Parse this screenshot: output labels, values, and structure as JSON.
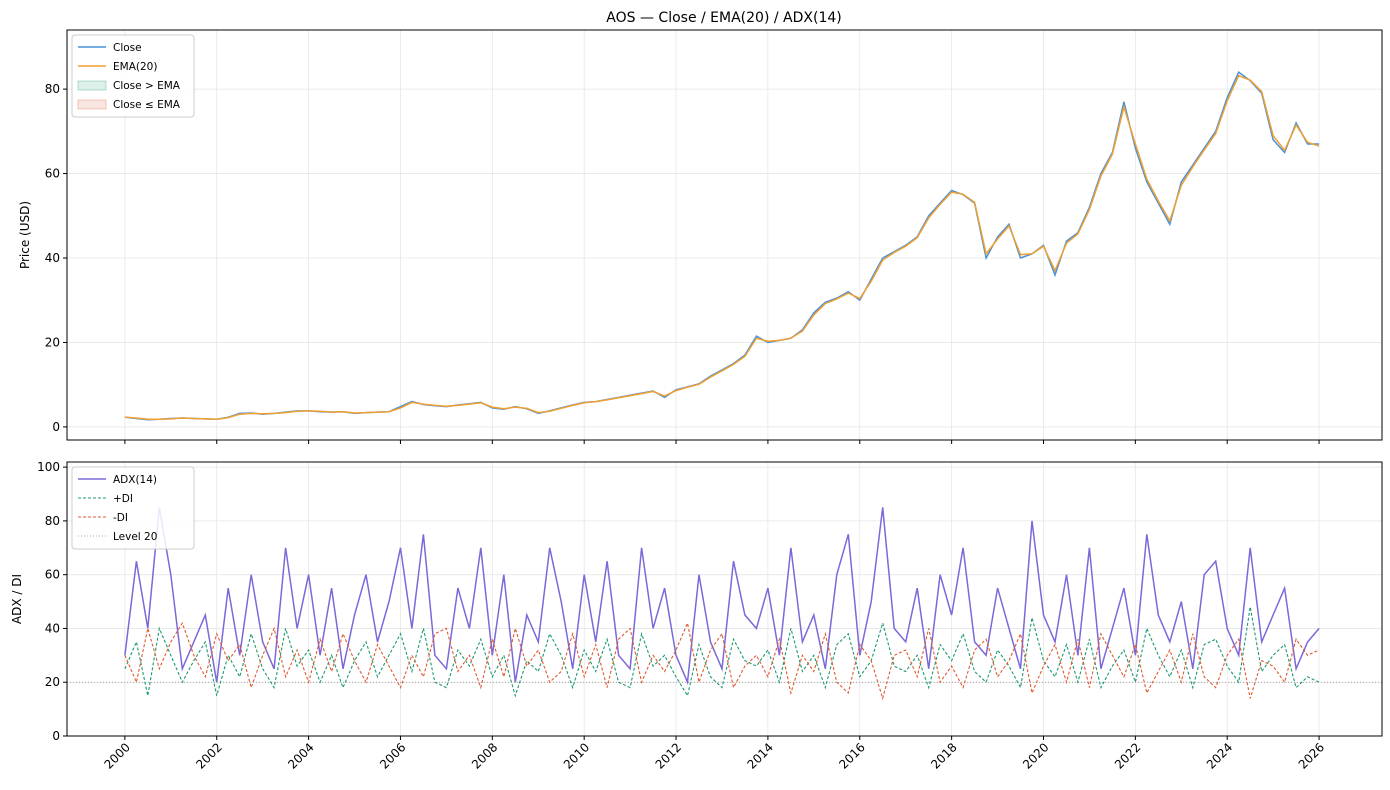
{
  "chart_data": [
    {
      "type": "line",
      "title": "AOS — Close / EMA(20) / ADX(14)",
      "y_label": "Price (USD)",
      "x": [
        2000,
        2000.25,
        2000.5,
        2000.75,
        2001,
        2001.25,
        2001.5,
        2001.75,
        2002,
        2002.25,
        2002.5,
        2002.75,
        2003,
        2003.25,
        2003.5,
        2003.75,
        2004,
        2004.25,
        2004.5,
        2004.75,
        2005,
        2005.25,
        2005.5,
        2005.75,
        2006,
        2006.25,
        2006.5,
        2006.75,
        2007,
        2007.25,
        2007.5,
        2007.75,
        2008,
        2008.25,
        2008.5,
        2008.75,
        2009,
        2009.25,
        2009.5,
        2009.75,
        2010,
        2010.25,
        2010.5,
        2010.75,
        2011,
        2011.25,
        2011.5,
        2011.75,
        2012,
        2012.25,
        2012.5,
        2012.75,
        2013,
        2013.25,
        2013.5,
        2013.75,
        2014,
        2014.25,
        2014.5,
        2014.75,
        2015,
        2015.25,
        2015.5,
        2015.75,
        2016,
        2016.25,
        2016.5,
        2016.75,
        2017,
        2017.25,
        2017.5,
        2017.75,
        2018,
        2018.25,
        2018.5,
        2018.75,
        2019,
        2019.25,
        2019.5,
        2019.75,
        2020,
        2020.25,
        2020.5,
        2020.75,
        2021,
        2021.25,
        2021.5,
        2021.75,
        2022,
        2022.25,
        2022.5,
        2022.75,
        2023,
        2023.25,
        2023.5,
        2023.75,
        2024,
        2024.25,
        2024.5,
        2024.75,
        2025,
        2025.25,
        2025.5,
        2025.75,
        2026
      ],
      "series": [
        {
          "name": "Close",
          "color": "#4a90d9",
          "dash": false,
          "values": [
            2.3,
            2.0,
            1.7,
            1.8,
            2.0,
            2.1,
            2.0,
            1.9,
            1.8,
            2.3,
            3.2,
            3.3,
            3.0,
            3.2,
            3.5,
            3.8,
            3.8,
            3.6,
            3.5,
            3.6,
            3.2,
            3.4,
            3.5,
            3.6,
            4.8,
            6.0,
            5.3,
            5.0,
            4.8,
            5.2,
            5.5,
            5.8,
            4.5,
            4.2,
            4.8,
            4.3,
            3.2,
            3.8,
            4.5,
            5.2,
            5.8,
            6.0,
            6.5,
            7.0,
            7.5,
            8.0,
            8.5,
            7.0,
            8.8,
            9.5,
            10.2,
            12.0,
            13.5,
            15.0,
            17.0,
            21.5,
            20.0,
            20.5,
            21.0,
            23.0,
            27.0,
            29.5,
            30.5,
            32.0,
            30.0,
            35.0,
            40.0,
            41.5,
            43.0,
            45.0,
            50.0,
            53.0,
            56.0,
            55.0,
            53.0,
            40.0,
            45.0,
            48.0,
            40.0,
            41.0,
            43.0,
            36.0,
            44.0,
            46.0,
            52.0,
            60.0,
            65.0,
            77.0,
            66.0,
            58.0,
            53.0,
            48.0,
            58.0,
            62.0,
            66.0,
            70.0,
            78.0,
            84.0,
            82.0,
            79.0,
            68.0,
            65.0,
            72.0,
            67.0,
            67.0
          ]
        },
        {
          "name": "EMA(20)",
          "color": "#f0a030",
          "dash": false,
          "values": [
            2.3,
            2.1,
            1.8,
            1.8,
            1.9,
            2.1,
            2.0,
            1.9,
            1.8,
            2.2,
            3.0,
            3.2,
            3.1,
            3.2,
            3.4,
            3.7,
            3.8,
            3.7,
            3.5,
            3.6,
            3.3,
            3.4,
            3.5,
            3.6,
            4.5,
            5.8,
            5.4,
            5.1,
            4.9,
            5.1,
            5.4,
            5.7,
            4.7,
            4.3,
            4.7,
            4.4,
            3.4,
            3.7,
            4.4,
            5.1,
            5.7,
            6.0,
            6.4,
            6.9,
            7.4,
            7.9,
            8.4,
            7.3,
            8.6,
            9.4,
            10.1,
            11.8,
            13.3,
            14.8,
            16.7,
            21.0,
            20.3,
            20.5,
            21.0,
            22.7,
            26.5,
            29.2,
            30.3,
            31.7,
            30.4,
            34.5,
            39.5,
            41.3,
            42.8,
            44.8,
            49.5,
            52.7,
            55.6,
            55.1,
            53.2,
            41.0,
            44.5,
            47.6,
            40.8,
            41.0,
            42.8,
            37.0,
            43.5,
            45.7,
            51.5,
            59.4,
            64.6,
            75.8,
            67.0,
            58.7,
            53.5,
            48.8,
            57.2,
            61.6,
            65.6,
            69.5,
            77.2,
            83.2,
            82.1,
            79.4,
            69.0,
            65.5,
            71.5,
            67.4,
            66.5
          ]
        }
      ],
      "fills": [
        {
          "name": "Close > EMA",
          "color": "#1a9a70"
        },
        {
          "name": "Close ≤ EMA",
          "color": "#e05a30"
        }
      ],
      "xlim": [
        1998.74,
        2027.37
      ],
      "xticks": [
        2000,
        2002,
        2004,
        2006,
        2008,
        2010,
        2012,
        2014,
        2016,
        2018,
        2020,
        2022,
        2024,
        2026
      ],
      "ylim": [
        -3.1,
        94
      ],
      "yticks": [
        0,
        20,
        40,
        60,
        80
      ],
      "grid": true,
      "legend": "upper-left"
    },
    {
      "type": "line",
      "y_label": "ADX / DI",
      "x": [
        2000,
        2000.25,
        2000.5,
        2000.75,
        2001,
        2001.25,
        2001.5,
        2001.75,
        2002,
        2002.25,
        2002.5,
        2002.75,
        2003,
        2003.25,
        2003.5,
        2003.75,
        2004,
        2004.25,
        2004.5,
        2004.75,
        2005,
        2005.25,
        2005.5,
        2005.75,
        2006,
        2006.25,
        2006.5,
        2006.75,
        2007,
        2007.25,
        2007.5,
        2007.75,
        2008,
        2008.25,
        2008.5,
        2008.75,
        2009,
        2009.25,
        2009.5,
        2009.75,
        2010,
        2010.25,
        2010.5,
        2010.75,
        2011,
        2011.25,
        2011.5,
        2011.75,
        2012,
        2012.25,
        2012.5,
        2012.75,
        2013,
        2013.25,
        2013.5,
        2013.75,
        2014,
        2014.25,
        2014.5,
        2014.75,
        2015,
        2015.25,
        2015.5,
        2015.75,
        2016,
        2016.25,
        2016.5,
        2016.75,
        2017,
        2017.25,
        2017.5,
        2017.75,
        2018,
        2018.25,
        2018.5,
        2018.75,
        2019,
        2019.25,
        2019.5,
        2019.75,
        2020,
        2020.25,
        2020.5,
        2020.75,
        2021,
        2021.25,
        2021.5,
        2021.75,
        2022,
        2022.25,
        2022.5,
        2022.75,
        2023,
        2023.25,
        2023.5,
        2023.75,
        2024,
        2024.25,
        2024.5,
        2024.75,
        2025,
        2025.25,
        2025.5,
        2025.75,
        2026
      ],
      "series": [
        {
          "name": "ADX(14)",
          "color": "#7b68d9",
          "dash": false,
          "values": [
            30,
            65,
            40,
            85,
            60,
            25,
            35,
            45,
            20,
            55,
            30,
            60,
            35,
            25,
            70,
            40,
            60,
            30,
            55,
            25,
            45,
            60,
            35,
            50,
            70,
            40,
            75,
            30,
            25,
            55,
            40,
            70,
            30,
            60,
            20,
            45,
            35,
            70,
            50,
            25,
            60,
            35,
            65,
            30,
            25,
            70,
            40,
            55,
            30,
            20,
            60,
            35,
            25,
            65,
            45,
            40,
            55,
            30,
            70,
            35,
            45,
            25,
            60,
            75,
            30,
            50,
            85,
            40,
            35,
            55,
            25,
            60,
            45,
            70,
            35,
            30,
            55,
            40,
            25,
            80,
            45,
            35,
            60,
            30,
            70,
            25,
            40,
            55,
            30,
            75,
            45,
            35,
            50,
            25,
            60,
            65,
            40,
            30,
            70,
            35,
            45,
            55,
            25,
            35,
            40
          ]
        },
        {
          "name": "+DI",
          "color": "#1a9a70",
          "dash": true,
          "values": [
            25,
            35,
            15,
            40,
            30,
            20,
            28,
            35,
            15,
            30,
            22,
            38,
            25,
            18,
            40,
            26,
            32,
            20,
            30,
            18,
            28,
            35,
            22,
            30,
            38,
            24,
            40,
            20,
            18,
            32,
            26,
            36,
            22,
            30,
            15,
            28,
            24,
            38,
            30,
            18,
            32,
            24,
            36,
            20,
            18,
            38,
            26,
            30,
            22,
            15,
            34,
            22,
            18,
            36,
            28,
            26,
            32,
            20,
            40,
            24,
            30,
            18,
            34,
            38,
            22,
            28,
            42,
            26,
            24,
            30,
            18,
            34,
            28,
            38,
            24,
            20,
            32,
            26,
            18,
            44,
            28,
            22,
            34,
            20,
            36,
            18,
            26,
            32,
            20,
            40,
            30,
            22,
            32,
            18,
            34,
            36,
            26,
            20,
            48,
            24,
            30,
            34,
            18,
            22,
            20
          ]
        },
        {
          "name": "-DI",
          "color": "#e05a30",
          "dash": true,
          "values": [
            30,
            20,
            40,
            25,
            35,
            42,
            30,
            22,
            38,
            28,
            34,
            18,
            30,
            40,
            22,
            32,
            20,
            36,
            24,
            38,
            28,
            20,
            34,
            26,
            18,
            30,
            22,
            38,
            40,
            24,
            30,
            18,
            36,
            22,
            40,
            26,
            32,
            20,
            24,
            38,
            22,
            34,
            18,
            36,
            40,
            20,
            30,
            24,
            32,
            42,
            20,
            32,
            38,
            18,
            26,
            30,
            22,
            36,
            16,
            30,
            24,
            38,
            20,
            16,
            34,
            28,
            14,
            30,
            32,
            22,
            40,
            20,
            26,
            18,
            32,
            36,
            22,
            28,
            38,
            16,
            26,
            34,
            20,
            36,
            18,
            38,
            30,
            22,
            34,
            16,
            24,
            32,
            20,
            38,
            22,
            18,
            30,
            36,
            14,
            28,
            26,
            20,
            36,
            30,
            32
          ]
        }
      ],
      "hline": {
        "name": "Level 20",
        "value": 20,
        "color": "#888888"
      },
      "xlim": [
        1998.74,
        2027.37
      ],
      "xticks": [
        2000,
        2002,
        2004,
        2006,
        2008,
        2010,
        2012,
        2014,
        2016,
        2018,
        2020,
        2022,
        2024,
        2026
      ],
      "ylim": [
        0,
        101.9
      ],
      "yticks": [
        0,
        20,
        40,
        60,
        80,
        100
      ],
      "grid": true,
      "legend": "upper-left"
    }
  ]
}
